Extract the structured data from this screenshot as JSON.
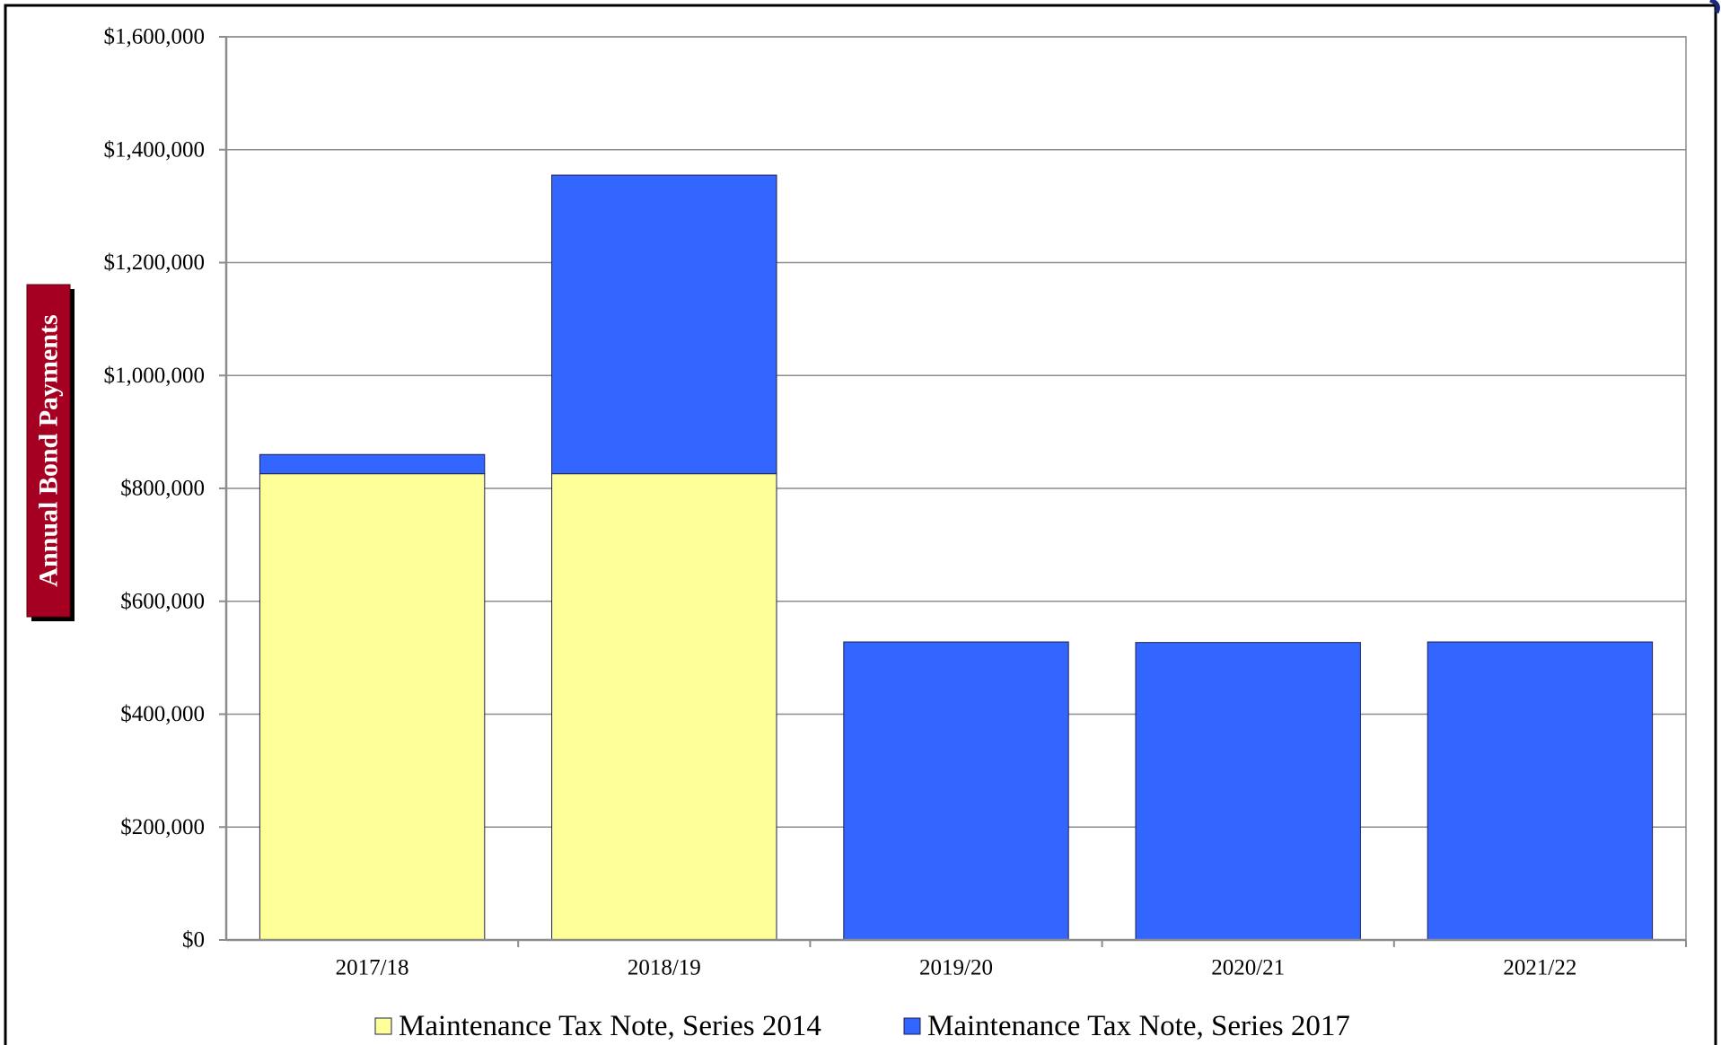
{
  "chart_data": {
    "type": "bar",
    "stacked": true,
    "title": "",
    "xlabel": "",
    "ylabel": "Annual Bond Payments",
    "ylim": [
      0,
      1600000
    ],
    "y_ticks": [
      0,
      200000,
      400000,
      600000,
      800000,
      1000000,
      1200000,
      1400000,
      1600000
    ],
    "y_tick_labels": [
      "$0",
      "$200,000",
      "$400,000",
      "$600,000",
      "$800,000",
      "$1,000,000",
      "$1,200,000",
      "$1,400,000",
      "$1,600,000"
    ],
    "categories": [
      "2017/18",
      "2018/19",
      "2019/20",
      "2020/21",
      "2021/22"
    ],
    "series": [
      {
        "name": "Maintenance Tax Note, Series 2014",
        "color": "#FFFF99",
        "values": [
          826000,
          826000,
          0,
          0,
          0
        ]
      },
      {
        "name": "Maintenance Tax Note, Series 2017",
        "color": "#3366FF",
        "values": [
          34000,
          529000,
          528000,
          527000,
          528000
        ]
      }
    ],
    "grid": true,
    "legend": "bottom",
    "ylabel_box_color": "#A50021"
  }
}
